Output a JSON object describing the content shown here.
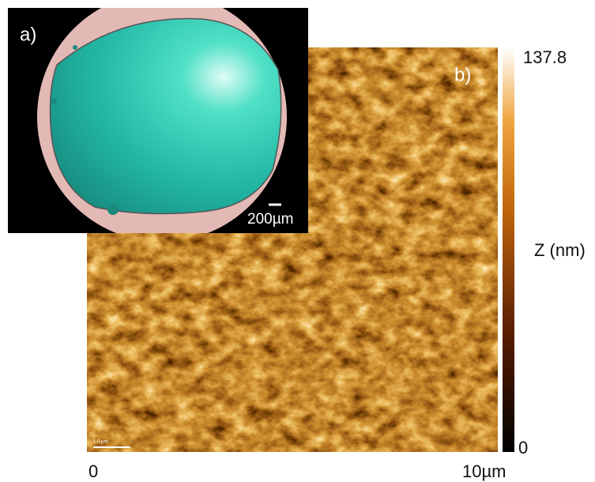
{
  "panel_a": {
    "label": "a)",
    "scale_bar": "200µm"
  },
  "panel_b": {
    "label": "b)",
    "scale_bar": "1.0 µm",
    "x_axis": {
      "start": "0",
      "end": "10µm"
    },
    "colorbar": {
      "title": "Z (nm)",
      "max": "137.8",
      "min": "0"
    }
  }
}
